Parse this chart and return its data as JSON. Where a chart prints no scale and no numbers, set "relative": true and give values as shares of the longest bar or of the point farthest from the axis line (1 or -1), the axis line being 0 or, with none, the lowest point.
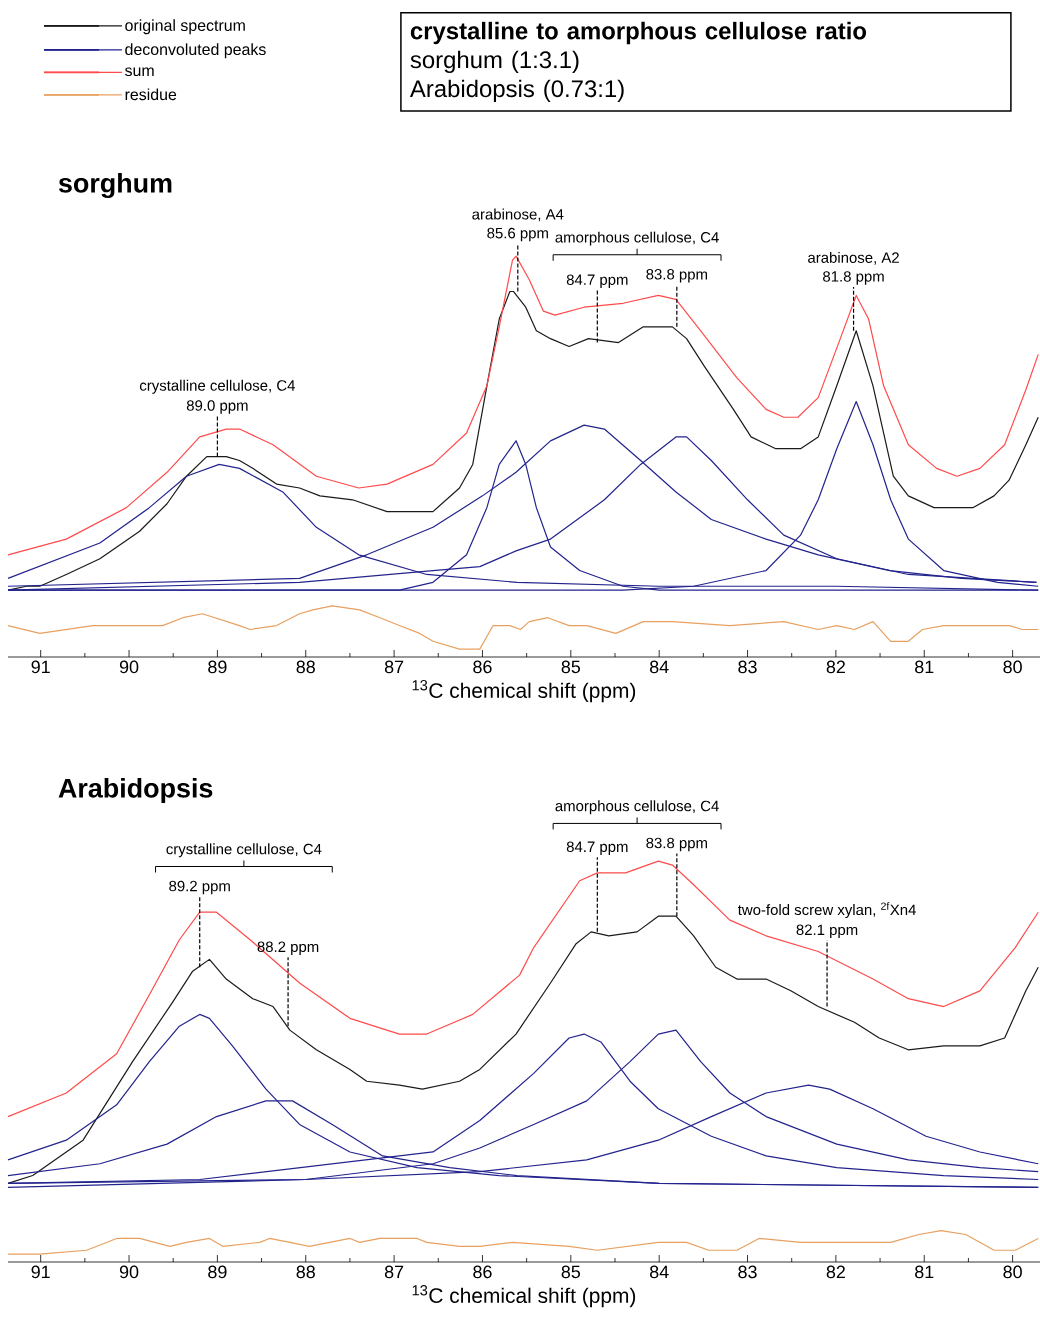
{
  "chart_data": [
    {
      "type": "line",
      "title": "sorghum",
      "xlabel": "$^{13}$C chemical shift (ppm)",
      "relative": true,
      "legend": "top left",
      "xlim": [
        91.37,
        79.69
      ],
      "xticks": [
        91,
        {
          "value": 90.5,
          "label": null
        },
        90,
        {
          "value": 89.5,
          "label": null
        },
        89,
        {
          "value": 88.5,
          "label": null
        },
        88,
        {
          "value": 87.5,
          "label": null
        },
        87,
        {
          "value": 86.5,
          "label": null
        },
        86,
        {
          "value": 85.5,
          "label": null
        },
        85,
        {
          "value": 84.5,
          "label": null
        },
        84,
        {
          "value": 83.5,
          "label": null
        },
        83,
        {
          "value": 82.5,
          "label": null
        },
        82,
        {
          "value": 81.5,
          "label": null
        },
        81,
        {
          "value": 80.5,
          "label": null
        },
        80
      ],
      "series": [
        {
          "name": "original spectrum",
          "color": "#1a1a1a",
          "x": [
            91.37,
            91.16,
            91.01,
            90.71,
            90.33,
            89.88,
            89.57,
            89.35,
            89.12,
            88.9,
            88.75,
            88.6,
            88.33,
            88.07,
            87.84,
            87.47,
            87.08,
            86.56,
            86.26,
            86.11,
            85.95,
            85.81,
            85.69,
            85.65,
            85.51,
            85.39,
            85.23,
            85.02,
            84.8,
            84.46,
            84.18,
            83.85,
            83.69,
            83.49,
            83.16,
            82.96,
            82.68,
            82.4,
            82.2,
            81.99,
            81.77,
            81.58,
            81.35,
            81.18,
            80.89,
            80.45,
            80.21,
            80.04,
            79.85,
            79.71
          ],
          "values": [
            0.15,
            0.16,
            0.16,
            0.19,
            0.23,
            0.3,
            0.37,
            0.44,
            0.49,
            0.49,
            0.48,
            0.46,
            0.42,
            0.41,
            0.39,
            0.38,
            0.35,
            0.35,
            0.41,
            0.47,
            0.67,
            0.84,
            0.91,
            0.91,
            0.87,
            0.81,
            0.79,
            0.77,
            0.79,
            0.78,
            0.82,
            0.82,
            0.79,
            0.72,
            0.61,
            0.54,
            0.51,
            0.51,
            0.54,
            0.67,
            0.81,
            0.67,
            0.44,
            0.39,
            0.36,
            0.36,
            0.39,
            0.43,
            0.52,
            0.59
          ]
        },
        {
          "name": "deconvoluted peaks",
          "color": "#23238e",
          "x": [
            91.37,
            90.33,
            89.77,
            89.35,
            88.98,
            88.75,
            88.26,
            87.88,
            87.4,
            86.63,
            85.61,
            84.0,
            82.0,
            79.71
          ],
          "values": [
            0.18,
            0.27,
            0.36,
            0.44,
            0.47,
            0.46,
            0.4,
            0.31,
            0.24,
            0.19,
            0.17,
            0.16,
            0.16,
            0.15
          ]
        },
        {
          "color": "#23238e",
          "x": [
            91.37,
            88.0,
            86.94,
            86.56,
            86.18,
            85.95,
            85.81,
            85.62,
            85.51,
            85.39,
            85.23,
            84.9,
            84.41,
            84.0,
            79.71
          ],
          "values": [
            0.15,
            0.15,
            0.15,
            0.17,
            0.24,
            0.36,
            0.47,
            0.53,
            0.47,
            0.36,
            0.26,
            0.2,
            0.16,
            0.15,
            0.15
          ]
        },
        {
          "color": "#23238e",
          "x": [
            91.37,
            88.07,
            87.31,
            86.56,
            86.0,
            85.62,
            85.23,
            84.85,
            84.62,
            84.21,
            83.81,
            83.41,
            82.79,
            82.2,
            81.39,
            80.58,
            79.73
          ],
          "values": [
            0.16,
            0.18,
            0.24,
            0.31,
            0.39,
            0.45,
            0.53,
            0.57,
            0.56,
            0.48,
            0.4,
            0.33,
            0.28,
            0.24,
            0.2,
            0.18,
            0.17
          ]
        },
        {
          "color": "#23238e",
          "x": [
            91.37,
            88.07,
            86.56,
            86.03,
            85.62,
            85.23,
            84.62,
            84.21,
            83.81,
            83.69,
            83.41,
            83.0,
            82.59,
            81.99,
            81.18,
            79.73
          ],
          "values": [
            0.15,
            0.17,
            0.2,
            0.21,
            0.25,
            0.28,
            0.38,
            0.47,
            0.54,
            0.54,
            0.48,
            0.38,
            0.29,
            0.23,
            0.19,
            0.17
          ]
        },
        {
          "color": "#23238e",
          "x": [
            91.37,
            86.0,
            84.41,
            83.61,
            82.79,
            82.4,
            82.2,
            81.99,
            81.77,
            81.58,
            81.38,
            81.18,
            80.78,
            80.17,
            79.71
          ],
          "values": [
            0.15,
            0.15,
            0.15,
            0.16,
            0.2,
            0.29,
            0.38,
            0.51,
            0.63,
            0.52,
            0.38,
            0.28,
            0.2,
            0.17,
            0.16
          ]
        },
        {
          "name": "sum",
          "color": "#ff4b4b",
          "x": [
            91.37,
            90.71,
            90.03,
            89.57,
            89.2,
            88.9,
            88.75,
            88.37,
            87.88,
            87.4,
            87.08,
            86.56,
            86.18,
            85.95,
            85.81,
            85.66,
            85.62,
            85.47,
            85.31,
            85.18,
            84.85,
            84.41,
            84.01,
            83.81,
            83.53,
            83.12,
            82.79,
            82.59,
            82.43,
            82.2,
            81.95,
            81.77,
            81.63,
            81.46,
            81.18,
            80.86,
            80.63,
            80.37,
            80.09,
            79.85,
            79.71
          ],
          "values": [
            0.24,
            0.28,
            0.36,
            0.45,
            0.54,
            0.56,
            0.56,
            0.52,
            0.44,
            0.41,
            0.42,
            0.47,
            0.55,
            0.67,
            0.82,
            0.99,
            1.0,
            0.94,
            0.86,
            0.85,
            0.87,
            0.88,
            0.9,
            0.89,
            0.81,
            0.69,
            0.61,
            0.59,
            0.59,
            0.64,
            0.79,
            0.9,
            0.84,
            0.67,
            0.52,
            0.46,
            0.44,
            0.46,
            0.52,
            0.66,
            0.75
          ]
        },
        {
          "name": "residue",
          "color": "#e8a060",
          "x": [
            91.37,
            91.01,
            90.41,
            89.62,
            89.39,
            89.17,
            88.75,
            88.63,
            88.33,
            88.07,
            87.92,
            87.7,
            87.39,
            87.16,
            86.94,
            86.71,
            86.56,
            86.26,
            86.03,
            85.88,
            85.69,
            85.57,
            85.47,
            85.26,
            85.02,
            84.82,
            84.49,
            84.18,
            83.85,
            83.2,
            82.59,
            82.2,
            81.99,
            81.79,
            81.58,
            81.38,
            81.18,
            81.02,
            80.78,
            80.04,
            79.89,
            79.71
          ],
          "values": [
            0.06,
            0.04,
            0.06,
            0.06,
            0.08,
            0.09,
            0.06,
            0.05,
            0.06,
            0.09,
            0.1,
            0.11,
            0.1,
            0.08,
            0.06,
            0.04,
            0.02,
            0,
            0,
            0.06,
            0.06,
            0.05,
            0.07,
            0.08,
            0.06,
            0.06,
            0.04,
            0.07,
            0.07,
            0.06,
            0.07,
            0.05,
            0.06,
            0.05,
            0.07,
            0.02,
            0.02,
            0.05,
            0.06,
            0.06,
            0.05,
            0.05
          ]
        }
      ],
      "annotations": [
        "crystalline to amorphous cellulose ratio",
        "sorghum (1:3.1)",
        "Arabidopsis (0.73:1)",
        {
          "text": "89.0 ppm",
          "x": 89.0,
          "y": 0.49
        },
        "crystalline cellulose, C4",
        {
          "text": "85.6 ppm",
          "x": 85.6,
          "y": 0.91
        },
        "arabinose, A4",
        {
          "text": "84.7 ppm",
          "x": 84.7,
          "y": 0.78
        },
        {
          "text": "83.8 ppm",
          "x": 83.8,
          "y": 0.82
        },
        "amorphous cellulose, C4",
        {
          "text": "81.8 ppm",
          "x": 81.8,
          "y": 0.81
        },
        "arabinose, A2"
      ]
    },
    {
      "type": "line",
      "title": "Arabidopsis",
      "xlabel": "$^{13}$C chemical shift (ppm)",
      "relative": true,
      "xlim": [
        91.37,
        79.69
      ],
      "xticks": [
        91,
        {
          "value": 90.5,
          "label": null
        },
        90,
        {
          "value": 89.5,
          "label": null
        },
        89,
        {
          "value": 88.5,
          "label": null
        },
        88,
        {
          "value": 87.5,
          "label": null
        },
        87,
        {
          "value": 86.5,
          "label": null
        },
        86,
        {
          "value": 85.5,
          "label": null
        },
        85,
        {
          "value": 84.5,
          "label": null
        },
        84,
        {
          "value": 83.5,
          "label": null
        },
        83,
        {
          "value": 82.5,
          "label": null
        },
        82,
        {
          "value": 81.5,
          "label": null
        },
        81,
        {
          "value": 80.5,
          "label": null
        },
        80
      ],
      "series": [
        {
          "color": "#1a1a1a",
          "x": [
            91.37,
            91.09,
            90.52,
            89.96,
            89.51,
            89.28,
            89.09,
            88.9,
            88.6,
            88.37,
            88.18,
            87.88,
            87.5,
            87.31,
            86.94,
            86.68,
            86.26,
            86.03,
            85.62,
            85.23,
            84.94,
            84.77,
            84.57,
            84.25,
            84.01,
            83.81,
            83.61,
            83.36,
            83.12,
            82.79,
            82.51,
            82.2,
            81.79,
            81.51,
            81.18,
            80.78,
            80.37,
            80.09,
            79.85,
            79.71
          ],
          "values": [
            0.18,
            0.2,
            0.29,
            0.49,
            0.64,
            0.72,
            0.75,
            0.7,
            0.65,
            0.63,
            0.57,
            0.52,
            0.47,
            0.44,
            0.43,
            0.42,
            0.44,
            0.47,
            0.56,
            0.69,
            0.79,
            0.82,
            0.81,
            0.82,
            0.86,
            0.86,
            0.81,
            0.73,
            0.7,
            0.7,
            0.67,
            0.63,
            0.59,
            0.55,
            0.52,
            0.53,
            0.53,
            0.55,
            0.67,
            0.73
          ]
        },
        {
          "color": "#23238e",
          "x": [
            91.37,
            90.71,
            90.14,
            89.77,
            89.43,
            89.2,
            89.09,
            88.83,
            88.45,
            88.07,
            87.5,
            86.74,
            85.81,
            84.0,
            79.71
          ],
          "values": [
            0.24,
            0.29,
            0.38,
            0.49,
            0.58,
            0.61,
            0.6,
            0.53,
            0.42,
            0.33,
            0.26,
            0.22,
            0.2,
            0.18,
            0.17
          ]
        },
        {
          "color": "#23238e",
          "x": [
            91.37,
            90.33,
            89.57,
            89.01,
            88.45,
            88.15,
            87.7,
            87.13,
            86.37,
            85.61,
            84.0,
            79.71
          ],
          "values": [
            0.2,
            0.23,
            0.28,
            0.35,
            0.39,
            0.39,
            0.33,
            0.25,
            0.22,
            0.2,
            0.18,
            0.17
          ]
        },
        {
          "color": "#23238e",
          "x": [
            91.37,
            89.2,
            86.56,
            86.03,
            85.42,
            85.02,
            84.85,
            84.66,
            84.33,
            84.01,
            83.41,
            82.79,
            81.99,
            80.78,
            79.71
          ],
          "values": [
            0.18,
            0.19,
            0.26,
            0.34,
            0.46,
            0.55,
            0.56,
            0.54,
            0.44,
            0.37,
            0.3,
            0.25,
            0.22,
            0.2,
            0.19
          ]
        },
        {
          "color": "#23238e",
          "x": [
            91.37,
            88.0,
            86.56,
            86.03,
            85.42,
            84.82,
            84.33,
            84.01,
            83.81,
            83.53,
            83.2,
            82.79,
            81.99,
            81.18,
            80.37,
            79.71
          ],
          "values": [
            0.17,
            0.19,
            0.23,
            0.27,
            0.33,
            0.39,
            0.49,
            0.56,
            0.57,
            0.49,
            0.41,
            0.35,
            0.28,
            0.24,
            0.22,
            0.21
          ]
        },
        {
          "color": "#23238e",
          "x": [
            91.37,
            88.0,
            86.03,
            84.82,
            84.01,
            83.41,
            82.79,
            82.31,
            82.07,
            81.58,
            80.98,
            80.37,
            79.71
          ],
          "values": [
            0.18,
            0.19,
            0.21,
            0.24,
            0.29,
            0.35,
            0.41,
            0.43,
            0.42,
            0.37,
            0.3,
            0.26,
            0.23
          ]
        },
        {
          "color": "#ff4b4b",
          "x": [
            91.37,
            90.71,
            90.14,
            89.77,
            89.43,
            89.2,
            89.01,
            88.63,
            88.07,
            87.5,
            86.94,
            86.63,
            86.11,
            85.58,
            85.42,
            84.9,
            84.7,
            84.38,
            84.01,
            83.85,
            83.61,
            83.2,
            82.79,
            82.2,
            81.58,
            81.18,
            80.78,
            80.37,
            79.97,
            79.71
          ],
          "values": [
            0.35,
            0.41,
            0.51,
            0.66,
            0.8,
            0.87,
            0.87,
            0.8,
            0.69,
            0.6,
            0.56,
            0.56,
            0.61,
            0.71,
            0.78,
            0.95,
            0.97,
            0.97,
            1.0,
            0.99,
            0.94,
            0.85,
            0.81,
            0.77,
            0.7,
            0.65,
            0.63,
            0.67,
            0.78,
            0.87
          ]
        },
        {
          "color": "#e8a060",
          "x": [
            91.37,
            91.01,
            90.48,
            90.14,
            89.88,
            89.54,
            89.35,
            89.09,
            88.94,
            88.52,
            88.41,
            88.18,
            87.96,
            87.5,
            87.39,
            87.16,
            86.74,
            86.63,
            86.26,
            86.03,
            85.66,
            85.02,
            84.7,
            84.01,
            83.69,
            83.44,
            83.12,
            82.87,
            82.4,
            81.99,
            81.38,
            81.06,
            80.81,
            80.53,
            80.21,
            79.97,
            79.71
          ],
          "values": [
            0,
            0,
            0.01,
            0.04,
            0.04,
            0.02,
            0.03,
            0.04,
            0.02,
            0.03,
            0.04,
            0.03,
            0.02,
            0.04,
            0.03,
            0.04,
            0.04,
            0.03,
            0.02,
            0.02,
            0.03,
            0.02,
            0.01,
            0.03,
            0.03,
            0.01,
            0.01,
            0.04,
            0.03,
            0.03,
            0.03,
            0.05,
            0.06,
            0.05,
            0.01,
            0.01,
            0.04
          ]
        }
      ],
      "annotations": [
        {
          "text": "89.2 ppm",
          "x": 89.2,
          "y": 0.73
        },
        {
          "text": "88.2 ppm",
          "x": 88.2,
          "y": 0.58
        },
        "crystalline cellulose, C4",
        {
          "text": "84.7 ppm",
          "x": 84.7,
          "y": 0.82
        },
        {
          "text": "83.8 ppm",
          "x": 83.8,
          "y": 0.86
        },
        "amorphous cellulose, C4",
        {
          "text": "82.1 ppm",
          "x": 82.1,
          "y": 0.63
        },
        "two-fold screw xylan, $^{2f}$Xn4"
      ]
    }
  ]
}
